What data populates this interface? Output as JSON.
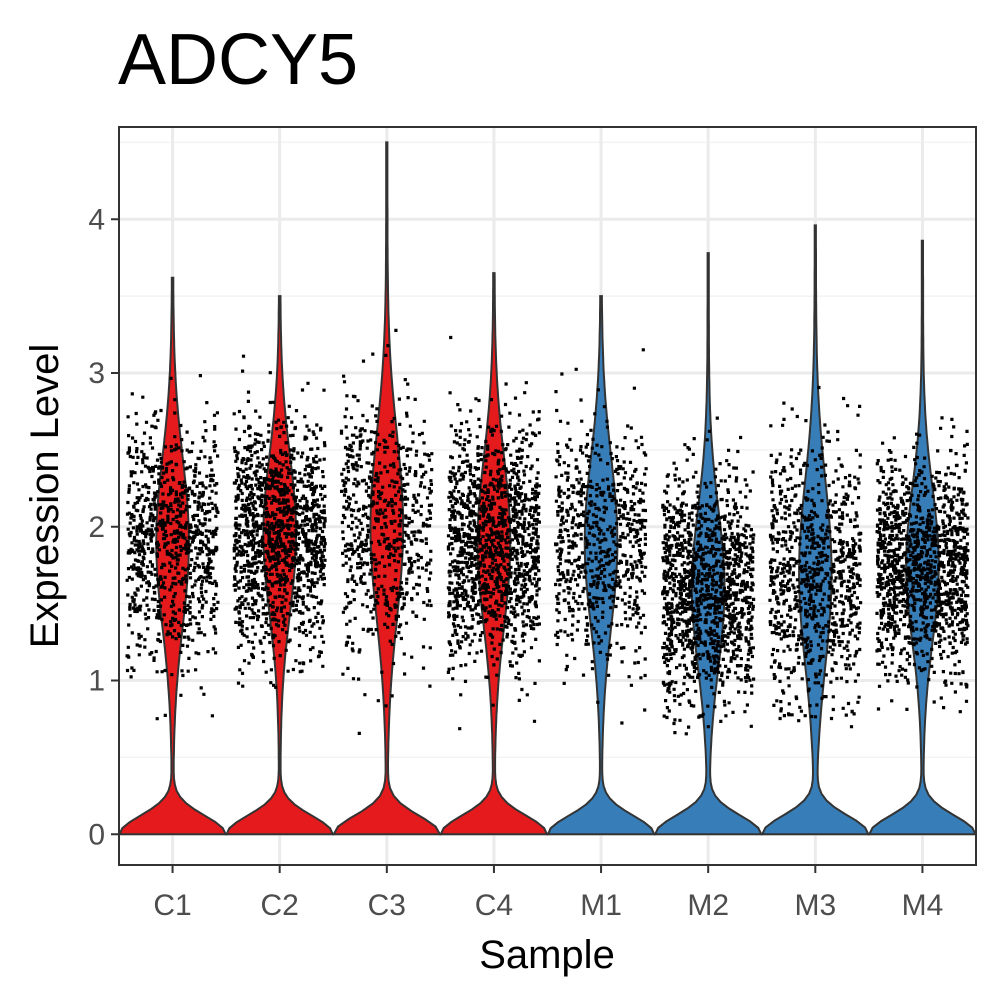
{
  "chart_data": {
    "type": "violin",
    "title": "ADCY5",
    "xlabel": "Sample",
    "ylabel": "Expression Level",
    "categories": [
      "C1",
      "C2",
      "C3",
      "C4",
      "M1",
      "M2",
      "M3",
      "M4"
    ],
    "ylim": [
      -0.2,
      4.6
    ],
    "yticks": [
      0,
      1,
      2,
      3,
      4
    ],
    "grid": true,
    "legend": "none",
    "colors": {
      "C": "#e41a1c",
      "M": "#377eb8",
      "points": "#000000",
      "outline": "#333333"
    },
    "groups": [
      {
        "name": "C1",
        "color": "#e41a1c",
        "max": 3.62,
        "center": 1.9,
        "spread": 0.55,
        "points": 900
      },
      {
        "name": "C2",
        "color": "#e41a1c",
        "max": 3.5,
        "center": 1.95,
        "spread": 0.52,
        "points": 1300
      },
      {
        "name": "C3",
        "color": "#e41a1c",
        "max": 4.5,
        "center": 2.0,
        "spread": 0.6,
        "points": 650
      },
      {
        "name": "C4",
        "color": "#e41a1c",
        "max": 3.65,
        "center": 1.9,
        "spread": 0.55,
        "points": 1300
      },
      {
        "name": "M1",
        "color": "#377eb8",
        "max": 3.5,
        "center": 1.9,
        "spread": 0.55,
        "points": 700
      },
      {
        "name": "M2",
        "color": "#377eb8",
        "max": 3.78,
        "center": 1.6,
        "spread": 0.52,
        "points": 1300
      },
      {
        "name": "M3",
        "color": "#377eb8",
        "max": 3.96,
        "center": 1.7,
        "spread": 0.6,
        "points": 900
      },
      {
        "name": "M4",
        "color": "#377eb8",
        "max": 3.86,
        "center": 1.75,
        "spread": 0.5,
        "points": 1300
      }
    ]
  }
}
